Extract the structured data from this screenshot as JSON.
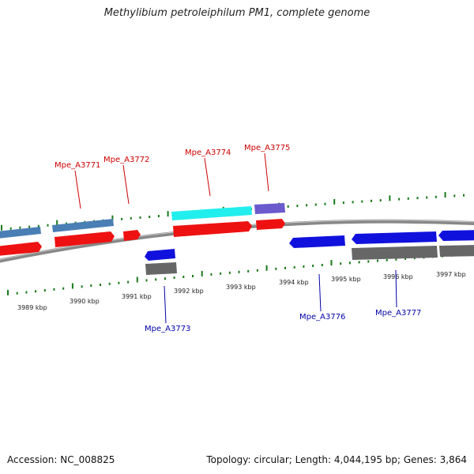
{
  "title": "Methylibium petroleiphilum PM1, complete genome",
  "footer": {
    "accession": "Accession: NC_008825",
    "stats": "Topology: circular; Length: 4,044,195 bp; Genes: 3,864"
  },
  "colors": {
    "cds_red": "#ee1111",
    "cds_steelblue": "#4a7fb5",
    "cds_cyan": "#22eeee",
    "cds_slate": "#6a5acd",
    "cds_blue": "#1111dd",
    "cds_gray": "#666666",
    "tick": "#1a7a1a",
    "backbone": "#888888",
    "label_forward": "#cc0000",
    "label_reverse": "#0000aa"
  },
  "scale_labels": [
    "3989 kbp",
    "3990 kbp",
    "3991 kbp",
    "3992 kbp",
    "3993 kbp",
    "3994 kbp",
    "3995 kbp",
    "3996 kbp",
    "3997 kbp"
  ],
  "gene_labels": [
    {
      "name": "Mpe_A3771",
      "strand": "forward"
    },
    {
      "name": "Mpe_A3772",
      "strand": "forward"
    },
    {
      "name": "Mpe_A3774",
      "strand": "forward"
    },
    {
      "name": "Mpe_A3775",
      "strand": "forward"
    },
    {
      "name": "Mpe_A3773",
      "strand": "reverse"
    },
    {
      "name": "Mpe_A3776",
      "strand": "reverse"
    },
    {
      "name": "Mpe_A3777",
      "strand": "reverse"
    }
  ]
}
